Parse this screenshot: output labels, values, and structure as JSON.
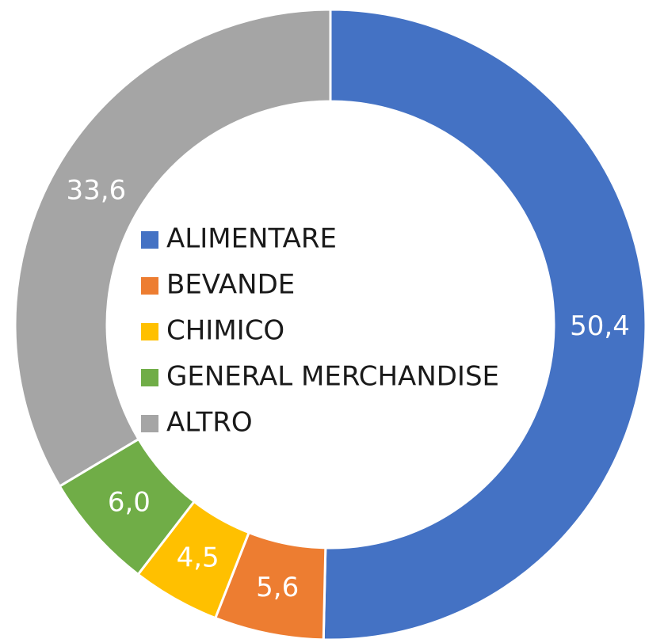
{
  "chart_data": {
    "type": "donut",
    "categories": [
      "ALIMENTARE",
      "BEVANDE",
      "CHIMICO",
      "GENERAL MERCHANDISE",
      "ALTRO"
    ],
    "values": [
      50.4,
      5.6,
      4.5,
      6.0,
      33.6
    ],
    "value_labels": [
      "50,4",
      "5,6",
      "4,5",
      "6,0",
      "33,6"
    ],
    "colors": [
      "#4472c4",
      "#ed7d31",
      "#ffc000",
      "#70ad47",
      "#a5a5a5"
    ],
    "legend": "center"
  }
}
